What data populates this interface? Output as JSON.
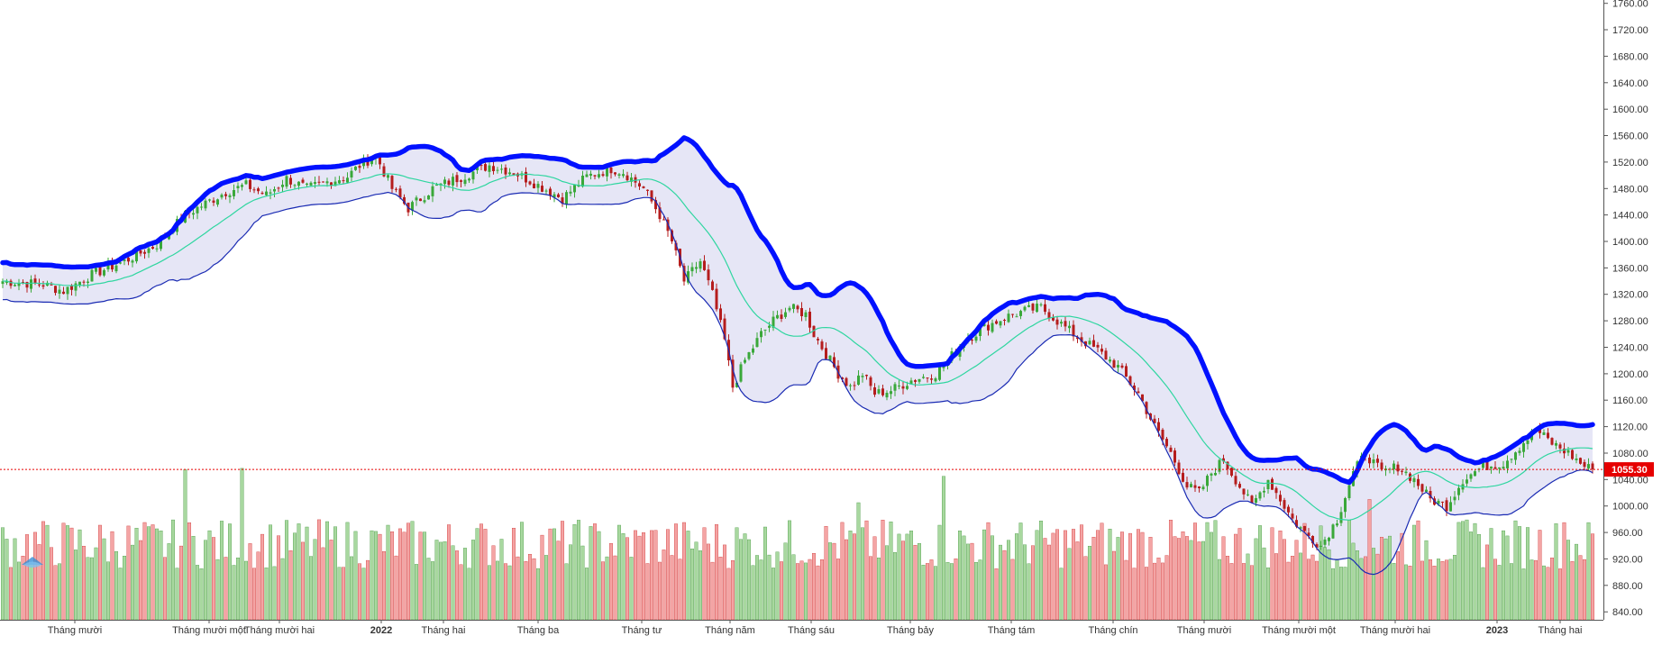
{
  "chart_data": {
    "type": "candlestick",
    "title": "",
    "xlabel": "",
    "ylabel": "",
    "x_tick_labels": [
      "Tháng mười",
      "Tháng mười một",
      "Tháng mười hai",
      "2022",
      "Tháng hai",
      "Tháng ba",
      "Tháng tư",
      "Tháng năm",
      "Tháng sáu",
      "Tháng bảy",
      "Tháng tám",
      "Tháng chín",
      "Tháng mười",
      "Tháng mười một",
      "Tháng mười hai",
      "2023",
      "Tháng hai"
    ],
    "bold_x_ticks": [
      "2022",
      "2023"
    ],
    "y_tick_labels": [
      "840.00",
      "880.00",
      "920.00",
      "960.00",
      "1000.00",
      "1040.00",
      "1080.00",
      "1120.00",
      "1160.00",
      "1200.00",
      "1240.00",
      "1280.00",
      "1320.00",
      "1360.00",
      "1400.00",
      "1440.00",
      "1480.00",
      "1520.00",
      "1560.00",
      "1600.00",
      "1640.00",
      "1680.00",
      "1720.00",
      "1760.00"
    ],
    "ylim": [
      828,
      1765
    ],
    "grid": false,
    "last_price": {
      "value": 1055.3,
      "label": "1055.30"
    },
    "close_anchors": [
      [
        0,
        1340
      ],
      [
        10,
        1335
      ],
      [
        15,
        1325
      ],
      [
        22,
        1350
      ],
      [
        30,
        1370
      ],
      [
        38,
        1395
      ],
      [
        45,
        1440
      ],
      [
        55,
        1475
      ],
      [
        60,
        1485
      ],
      [
        65,
        1470
      ],
      [
        70,
        1495
      ],
      [
        75,
        1480
      ],
      [
        80,
        1490
      ],
      [
        85,
        1498
      ],
      [
        88,
        1515
      ],
      [
        92,
        1530
      ],
      [
        96,
        1480
      ],
      [
        100,
        1450
      ],
      [
        106,
        1480
      ],
      [
        112,
        1495
      ],
      [
        120,
        1515
      ],
      [
        126,
        1505
      ],
      [
        132,
        1485
      ],
      [
        138,
        1465
      ],
      [
        144,
        1498
      ],
      [
        150,
        1510
      ],
      [
        153,
        1505
      ],
      [
        158,
        1480
      ],
      [
        162,
        1440
      ],
      [
        165,
        1400
      ],
      [
        168,
        1340
      ],
      [
        172,
        1370
      ],
      [
        175,
        1320
      ],
      [
        178,
        1250
      ],
      [
        180,
        1180
      ],
      [
        183,
        1220
      ],
      [
        187,
        1260
      ],
      [
        190,
        1280
      ],
      [
        194,
        1300
      ],
      [
        198,
        1290
      ],
      [
        200,
        1260
      ],
      [
        203,
        1230
      ],
      [
        206,
        1200
      ],
      [
        209,
        1180
      ],
      [
        212,
        1200
      ],
      [
        215,
        1170
      ],
      [
        219,
        1175
      ],
      [
        224,
        1190
      ],
      [
        230,
        1200
      ],
      [
        233,
        1220
      ],
      [
        237,
        1250
      ],
      [
        242,
        1270
      ],
      [
        247,
        1285
      ],
      [
        252,
        1295
      ],
      [
        256,
        1300
      ],
      [
        260,
        1280
      ],
      [
        265,
        1255
      ],
      [
        270,
        1235
      ],
      [
        275,
        1210
      ],
      [
        280,
        1170
      ],
      [
        284,
        1120
      ],
      [
        288,
        1080
      ],
      [
        292,
        1030
      ],
      [
        295,
        1020
      ],
      [
        298,
        1050
      ],
      [
        301,
        1070
      ],
      [
        304,
        1040
      ],
      [
        308,
        1000
      ],
      [
        312,
        1040
      ],
      [
        315,
        1010
      ],
      [
        318,
        980
      ],
      [
        321,
        960
      ],
      [
        325,
        940
      ],
      [
        329,
        980
      ],
      [
        333,
        1050
      ],
      [
        336,
        1080
      ],
      [
        340,
        1050
      ],
      [
        344,
        1060
      ],
      [
        348,
        1040
      ],
      [
        352,
        1010
      ],
      [
        356,
        1000
      ],
      [
        360,
        1040
      ],
      [
        365,
        1060
      ],
      [
        370,
        1065
      ],
      [
        374,
        1090
      ],
      [
        378,
        1115
      ],
      [
        382,
        1095
      ],
      [
        386,
        1080
      ],
      [
        390,
        1060
      ],
      [
        392,
        1055.3
      ]
    ],
    "volume": {
      "base": 828,
      "colors": {
        "up": "#a8d89f",
        "down": "#f4a4a4",
        "up_edge": "#4a9c45",
        "down_edge": "#d03a3a"
      },
      "spikes": [
        [
          45,
          1055
        ],
        [
          59,
          1057
        ],
        [
          232,
          1045
        ],
        [
          211,
          1005
        ],
        [
          337,
          1010
        ],
        [
          385,
          975
        ]
      ]
    },
    "indicators": {
      "bollinger_period": 20,
      "bollinger_stddev": 2,
      "upper_color": "#0011ff",
      "lower_color": "#1a2bb3",
      "middle_color": "#2fd6a0",
      "band_fill": "#e2e2f4"
    },
    "colors": {
      "candle_up": "#3aa83a",
      "candle_down": "#b51d1d",
      "last_price_line": "#e60000",
      "last_price_label_bg": "#e60000",
      "last_price_label_text": "#ffffff",
      "axis": "#555555",
      "watermark": "#3a8fd6"
    },
    "watermark_icon": "logo-icon"
  }
}
